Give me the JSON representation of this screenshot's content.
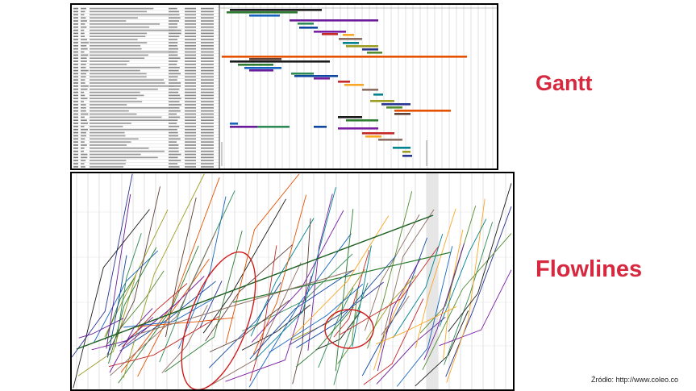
{
  "labels": {
    "gantt": "Gantt",
    "flowlines": "Flowlines",
    "source": "Źródło: http://www.coleo.co"
  },
  "colors": {
    "label": "#d6283f",
    "bars": [
      "#1a1a1a",
      "#2e7d32",
      "#1565c0",
      "#6a1b9a",
      "#2e8b57",
      "#0d47a1",
      "#7b1fa2",
      "#c62828",
      "#f9a825",
      "#8d6e63",
      "#00838f",
      "#9e9d24",
      "#283593",
      "#558b2f",
      "#e65100",
      "#5d4037"
    ],
    "circle": "#d11a1a"
  },
  "icons": {
    "gantt_table": "gantt-task-table",
    "gantt_chart": "gantt-timeline",
    "flowline_chart": "flowline-diagram"
  }
}
